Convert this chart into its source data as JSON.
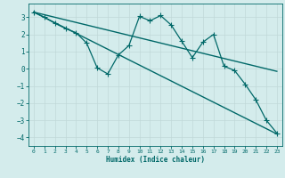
{
  "xlabel": "Humidex (Indice chaleur)",
  "background_color": "#d4ecec",
  "grid_color": "#c0d8d8",
  "line_color": "#006868",
  "xlim": [
    -0.5,
    23.5
  ],
  "ylim": [
    -4.5,
    3.8
  ],
  "xticks": [
    0,
    1,
    2,
    3,
    4,
    5,
    6,
    7,
    8,
    9,
    10,
    11,
    12,
    13,
    14,
    15,
    16,
    17,
    18,
    19,
    20,
    21,
    22,
    23
  ],
  "yticks": [
    -4,
    -3,
    -2,
    -1,
    0,
    1,
    2,
    3
  ],
  "series": [
    {
      "x": [
        0,
        23
      ],
      "y": [
        3.3,
        -3.8
      ],
      "marker": null,
      "linewidth": 1.0
    },
    {
      "x": [
        0,
        23
      ],
      "y": [
        3.3,
        -0.15
      ],
      "marker": null,
      "linewidth": 1.0
    },
    {
      "x": [
        0,
        1,
        2,
        3,
        4,
        5,
        6,
        7,
        8,
        9,
        10,
        11,
        12,
        13,
        14,
        15,
        16,
        17,
        18,
        19,
        20,
        21,
        22,
        23
      ],
      "y": [
        3.3,
        3.0,
        2.65,
        2.35,
        2.1,
        1.5,
        0.05,
        -0.3,
        0.8,
        1.35,
        3.05,
        2.8,
        3.1,
        2.55,
        1.6,
        0.65,
        1.55,
        2.0,
        0.15,
        -0.1,
        -0.9,
        -1.8,
        -3.0,
        -3.75
      ],
      "marker": "+",
      "markersize": 4,
      "linewidth": 0.9
    }
  ]
}
